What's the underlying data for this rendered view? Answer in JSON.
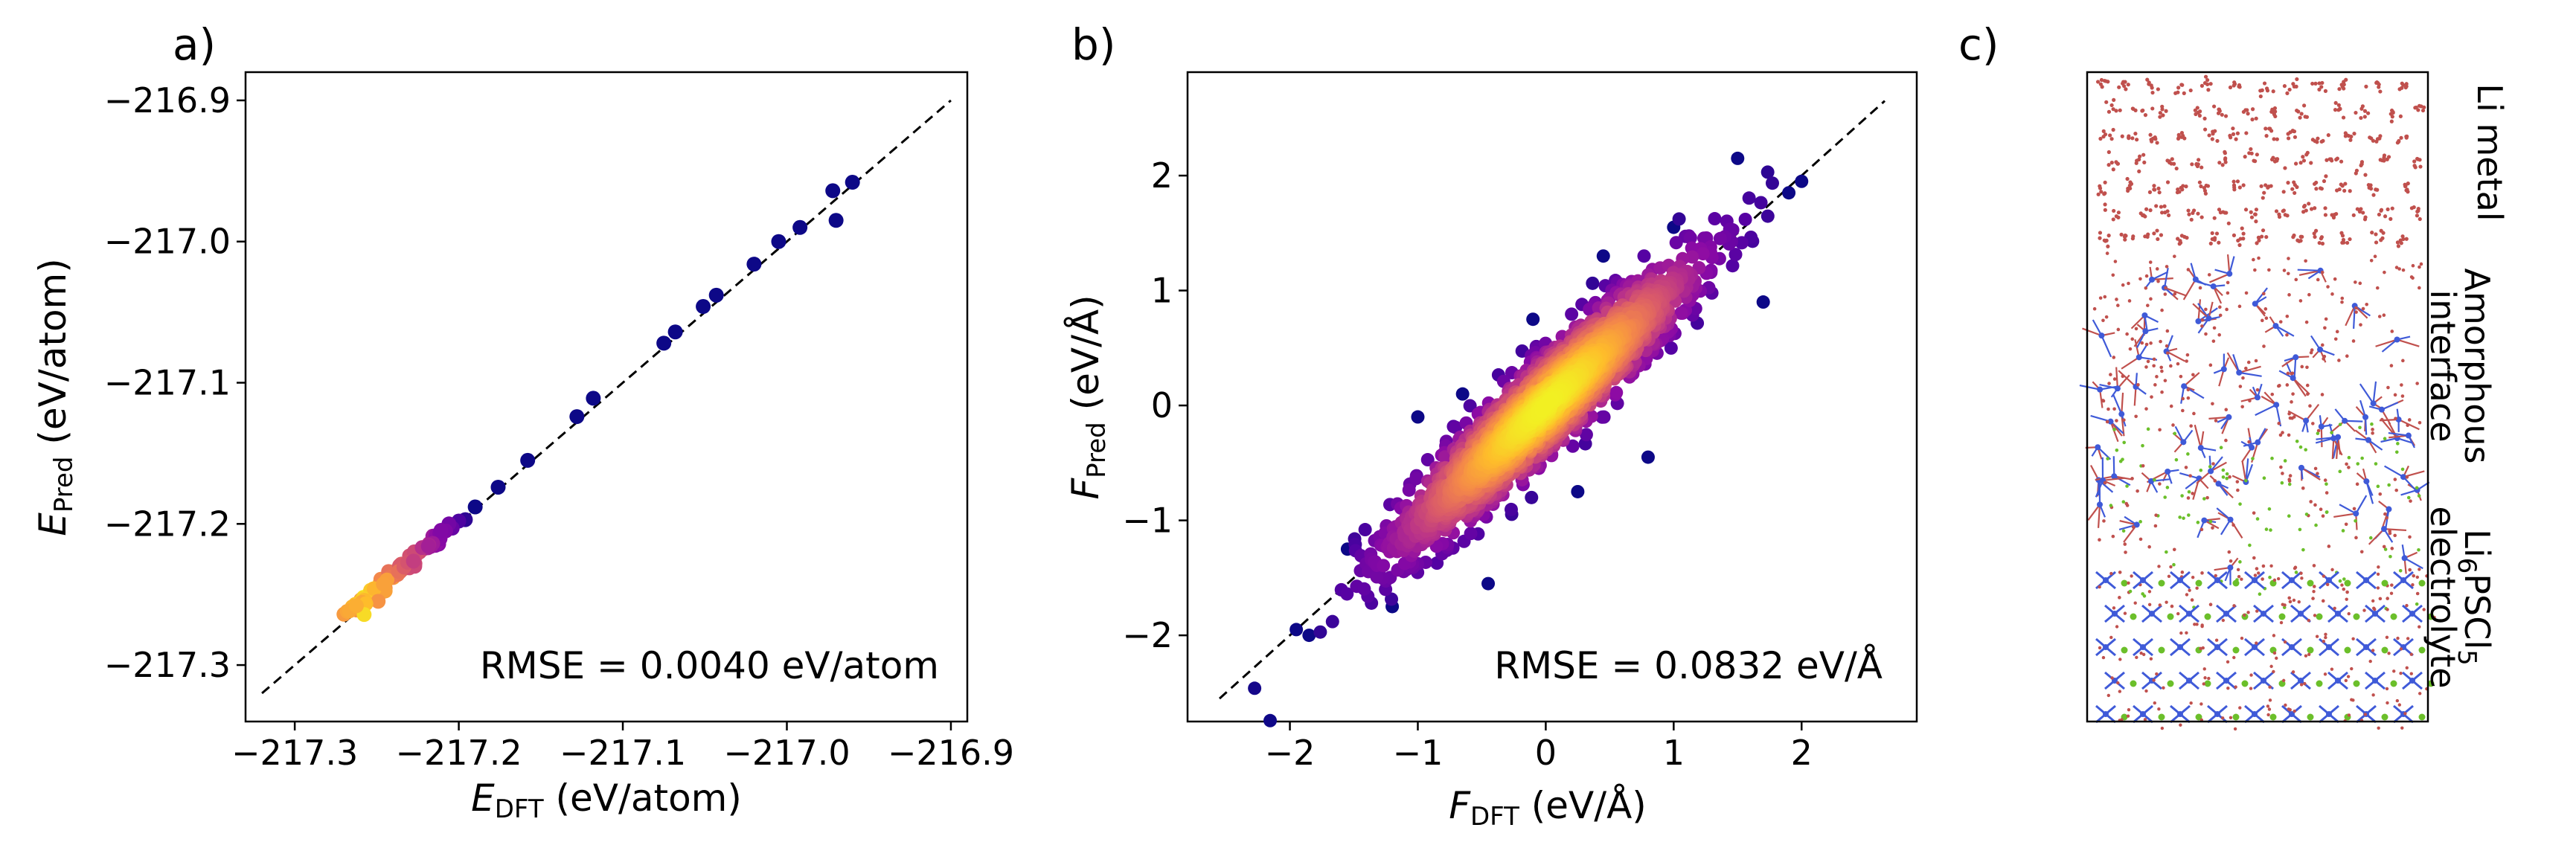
{
  "panels": {
    "a": "a)",
    "b": "b)",
    "c": "c)"
  },
  "chart_data": [
    {
      "type": "scatter",
      "panel": "a)",
      "xlabel_symbol": "E",
      "xlabel_sub": "DFT",
      "xlabel_unit": "(eV/atom)",
      "ylabel_symbol": "E",
      "ylabel_sub": "Pred",
      "ylabel_unit": "(eV/atom)",
      "xlim": [
        -217.33,
        -216.89
      ],
      "ylim": [
        -217.34,
        -216.88
      ],
      "xticks": [
        -217.3,
        -217.2,
        -217.1,
        -217.0,
        -216.9
      ],
      "xtick_labels": [
        "−217.3",
        "−217.2",
        "−217.1",
        "−217.0",
        "−216.9"
      ],
      "yticks": [
        -217.3,
        -217.2,
        -217.1,
        -217.0,
        -216.9
      ],
      "ytick_labels": [
        "−217.3",
        "−217.2",
        "−217.1",
        "−217.0",
        "−216.9"
      ],
      "reference_line": {
        "style": "dashed",
        "from": [
          -217.32,
          -217.32
        ],
        "to": [
          -216.9,
          -216.9
        ]
      },
      "annotation": "RMSE = 0.0040 eV/atom",
      "colormap": "plasma (point density)",
      "points": [
        [
          -217.27,
          -217.264
        ],
        [
          -217.268,
          -217.262
        ],
        [
          -217.265,
          -217.26
        ],
        [
          -217.263,
          -217.257
        ],
        [
          -217.262,
          -217.258
        ],
        [
          -217.26,
          -217.255
        ],
        [
          -217.258,
          -217.252
        ],
        [
          -217.257,
          -217.254
        ],
        [
          -217.255,
          -217.25
        ],
        [
          -217.253,
          -217.249
        ],
        [
          -217.252,
          -217.246
        ],
        [
          -217.25,
          -217.247
        ],
        [
          -217.248,
          -217.242
        ],
        [
          -217.246,
          -217.244
        ],
        [
          -217.245,
          -217.24
        ],
        [
          -217.243,
          -217.238
        ],
        [
          -217.241,
          -217.236
        ],
        [
          -217.24,
          -217.238
        ],
        [
          -217.238,
          -217.233
        ],
        [
          -217.236,
          -217.231
        ],
        [
          -217.234,
          -217.232
        ],
        [
          -217.232,
          -217.228
        ],
        [
          -217.23,
          -217.226
        ],
        [
          -217.228,
          -217.225
        ],
        [
          -217.226,
          -217.222
        ],
        [
          -217.224,
          -217.22
        ],
        [
          -217.222,
          -217.218
        ],
        [
          -217.22,
          -217.217
        ],
        [
          -217.218,
          -217.214
        ],
        [
          -217.216,
          -217.212
        ],
        [
          -217.214,
          -217.21
        ],
        [
          -217.212,
          -217.208
        ],
        [
          -217.21,
          -217.206
        ],
        [
          -217.208,
          -217.205
        ],
        [
          -217.206,
          -217.2
        ],
        [
          -217.204,
          -217.203
        ],
        [
          -217.2,
          -217.198
        ],
        [
          -217.196,
          -217.197
        ],
        [
          -217.19,
          -217.188
        ],
        [
          -217.176,
          -217.174
        ],
        [
          -217.158,
          -217.155
        ],
        [
          -217.128,
          -217.124
        ],
        [
          -217.118,
          -217.111
        ],
        [
          -217.075,
          -217.072
        ],
        [
          -217.068,
          -217.064
        ],
        [
          -217.051,
          -217.046
        ],
        [
          -217.043,
          -217.038
        ],
        [
          -217.02,
          -217.016
        ],
        [
          -217.005,
          -217.0
        ],
        [
          -216.992,
          -216.99
        ],
        [
          -216.972,
          -216.964
        ],
        [
          -216.97,
          -216.985
        ],
        [
          -216.96,
          -216.958
        ]
      ]
    },
    {
      "type": "scatter",
      "panel": "b)",
      "xlabel_symbol": "F",
      "xlabel_sub": "DFT",
      "xlabel_unit": "(eV/Å)",
      "ylabel_symbol": "F",
      "ylabel_sub": "Pred",
      "ylabel_unit": "(eV/Å)",
      "xlim": [
        -2.8,
        2.9
      ],
      "ylim": [
        -2.75,
        2.9
      ],
      "xticks": [
        -2,
        -1,
        0,
        1,
        2
      ],
      "xtick_labels": [
        "−2",
        "−1",
        "0",
        "1",
        "2"
      ],
      "yticks": [
        -2,
        -1,
        0,
        1,
        2
      ],
      "ytick_labels": [
        "−2",
        "−1",
        "0",
        "1",
        "2"
      ],
      "reference_line": {
        "style": "dashed",
        "from": [
          -2.55,
          -2.55
        ],
        "to": [
          2.65,
          2.65
        ]
      },
      "annotation": "RMSE = 0.0832 eV/Å",
      "colormap": "plasma (point density)",
      "n_points_approx": 2400,
      "points_outline": [
        [
          -1.85,
          -2.0
        ],
        [
          -1.95,
          -1.95
        ],
        [
          -1.55,
          -1.25
        ],
        [
          -1.0,
          -0.1
        ],
        [
          -0.65,
          0.1
        ],
        [
          -0.1,
          0.75
        ],
        [
          0.45,
          1.3
        ],
        [
          1.0,
          1.55
        ],
        [
          1.5,
          2.15
        ],
        [
          1.9,
          1.85
        ],
        [
          2.0,
          1.95
        ],
        [
          1.7,
          0.9
        ],
        [
          0.8,
          -0.45
        ],
        [
          0.25,
          -0.75
        ],
        [
          -0.45,
          -1.55
        ],
        [
          -1.2,
          -1.75
        ]
      ]
    }
  ],
  "snapshot": {
    "regions": [
      {
        "line1": "Li metal"
      },
      {
        "line1": "Amorphous",
        "line2": "interface"
      },
      {
        "line1_prefix": "Li",
        "sub1": "6",
        "mid": "PSCl",
        "sub2": "5",
        "line2": "electrolyte"
      }
    ],
    "atom_colors": {
      "lithium": "#c0504d",
      "phosphorus_sulfur": "#3f5ad8",
      "chlorine": "#6bbf2a"
    }
  }
}
